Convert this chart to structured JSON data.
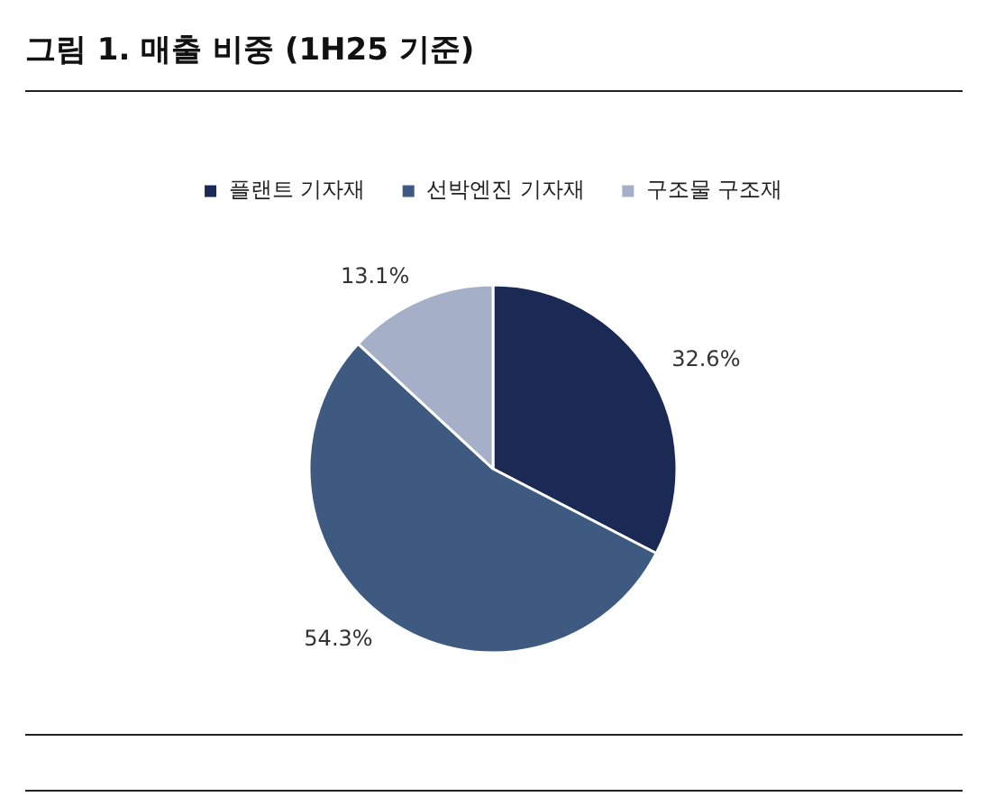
{
  "chart_data": {
    "type": "pie",
    "title": "그림 1. 매출 비중 (1H25 기준)",
    "categories": [
      "플랜트 기자재",
      "선박엔진 기자재",
      "구조물 구조재"
    ],
    "values": [
      32.6,
      54.3,
      13.1
    ],
    "colors": [
      "#1b2a55",
      "#3f5a80",
      "#a5afc8"
    ],
    "value_labels": [
      "32.6%",
      "54.3%",
      "13.1%"
    ],
    "legend": "top"
  }
}
